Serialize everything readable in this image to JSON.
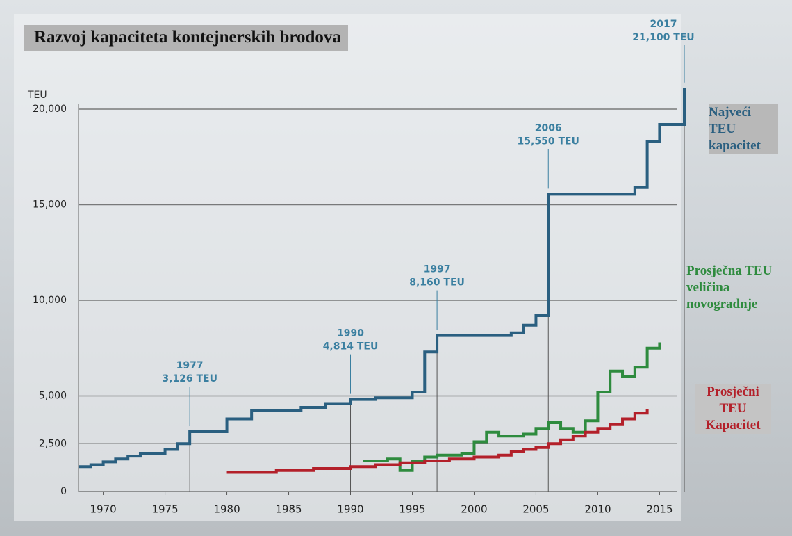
{
  "chart_data": {
    "type": "step",
    "title": "Razvoj kapaciteta kontejnerskih brodova",
    "y_label": "TEU",
    "xlim": [
      1968,
      2017
    ],
    "xticks": [
      1970,
      1975,
      1980,
      1985,
      1990,
      1995,
      2000,
      2005,
      2010,
      2015
    ],
    "ylim": [
      0,
      22000
    ],
    "yticks": [
      0,
      {
        "value": 2500,
        "label": "2,500"
      },
      {
        "value": 5000,
        "label": "5,000"
      },
      {
        "value": 10000,
        "label": "10,000"
      },
      {
        "value": 15000,
        "label": "15,000"
      },
      {
        "value": 20000,
        "label": "20,000"
      }
    ],
    "grid": true,
    "series": [
      {
        "name": "Najveći TEU kapacitet",
        "color": "#2a5f80",
        "x": [
          1968,
          1969,
          1970,
          1971,
          1972,
          1973,
          1975,
          1976,
          1977,
          1980,
          1982,
          1986,
          1988,
          1990,
          1992,
          1995,
          1996,
          1997,
          2003,
          2004,
          2005,
          2006,
          2013,
          2014,
          2015,
          2017
        ],
        "values": [
          1300,
          1400,
          1550,
          1700,
          1850,
          2000,
          2200,
          2500,
          3126,
          3800,
          4250,
          4400,
          4600,
          4814,
          4900,
          5200,
          7300,
          8160,
          8300,
          8700,
          9200,
          15550,
          15900,
          18300,
          19200,
          21100
        ]
      },
      {
        "name": "Prosječna TEU veličina novogradnje",
        "color": "#2e8b3e",
        "x": [
          1991,
          1993,
          1994,
          1995,
          1996,
          1997,
          1999,
          2000,
          2001,
          2002,
          2004,
          2005,
          2006,
          2007,
          2008,
          2009,
          2010,
          2011,
          2012,
          2013,
          2014,
          2015
        ],
        "values": [
          1600,
          1700,
          1100,
          1600,
          1800,
          1900,
          2000,
          2600,
          3100,
          2900,
          3000,
          3300,
          3600,
          3300,
          3100,
          3700,
          5200,
          6300,
          6000,
          6500,
          7500,
          7800
        ]
      },
      {
        "name": "Prosječni TEU Kapacitet",
        "color": "#b3202a",
        "x": [
          1980,
          1984,
          1987,
          1990,
          1992,
          1994,
          1996,
          1998,
          2000,
          2002,
          2003,
          2004,
          2005,
          2006,
          2007,
          2008,
          2009,
          2010,
          2011,
          2012,
          2013,
          2014
        ],
        "values": [
          1000,
          1100,
          1200,
          1300,
          1400,
          1500,
          1600,
          1700,
          1800,
          1900,
          2100,
          2200,
          2300,
          2500,
          2700,
          2900,
          3100,
          3300,
          3500,
          3800,
          4100,
          4300
        ]
      }
    ],
    "annotations": [
      {
        "lines": [
          "1977",
          "3,126 TEU"
        ],
        "x": 1977,
        "y": 3126
      },
      {
        "lines": [
          "1990",
          "4,814 TEU"
        ],
        "x": 1990,
        "y": 4814
      },
      {
        "lines": [
          "1997",
          "8,160 TEU"
        ],
        "x": 1997,
        "y": 8160
      },
      {
        "lines": [
          "2006",
          "15,550 TEU"
        ],
        "x": 2006,
        "y": 15550
      },
      {
        "lines": [
          "2017",
          "21,100 TEU"
        ],
        "x": 2017,
        "y": 21100
      }
    ]
  }
}
